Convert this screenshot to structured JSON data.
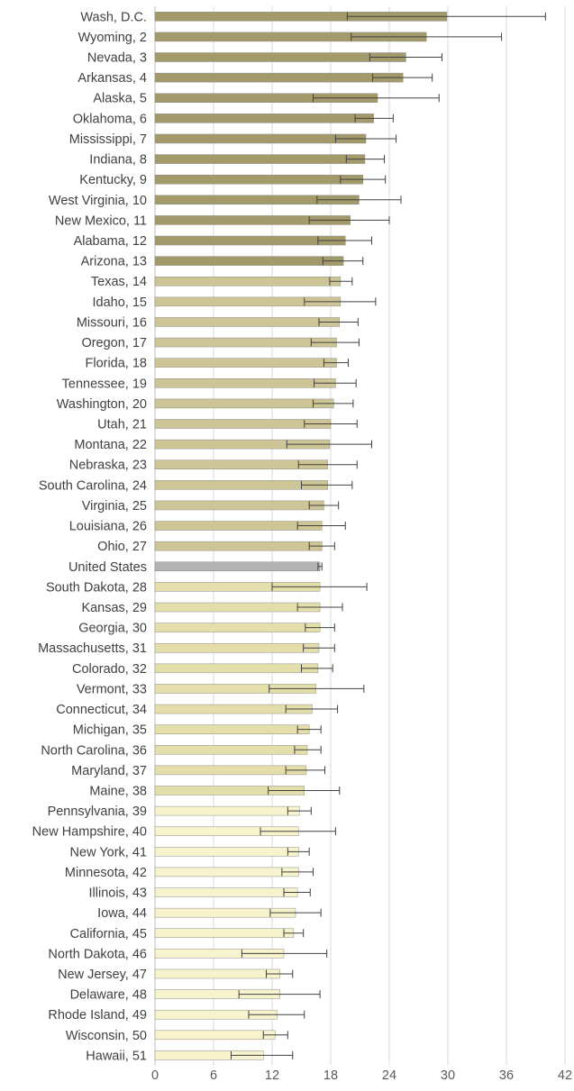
{
  "chart_data": {
    "type": "bar",
    "orientation": "horizontal",
    "title": "",
    "xlabel": "",
    "ylabel": "",
    "xlim": [
      0,
      42
    ],
    "xticks": [
      0,
      6,
      12,
      18,
      24,
      30,
      36,
      42
    ],
    "grid": true,
    "legend": "none",
    "colors": {
      "top": "#a29a6a",
      "upper": "#cdc595",
      "mid": "#e4dfaa",
      "low": "#f7f3cd",
      "us": "#b3b3b3"
    },
    "categories": [
      "Wash, D.C.",
      "Wyoming, 2",
      "Nevada, 3",
      "Arkansas, 4",
      "Alaska, 5",
      "Oklahoma, 6",
      "Mississippi, 7",
      "Indiana, 8",
      "Kentucky, 9",
      "West Virginia, 10",
      "New Mexico, 11",
      "Alabama, 12",
      "Arizona, 13",
      "Texas, 14",
      "Idaho, 15",
      "Missouri, 16",
      "Oregon, 17",
      "Florida, 18",
      "Tennessee, 19",
      "Washington, 20",
      "Utah, 21",
      "Montana, 22",
      "Nebraska, 23",
      "South Carolina, 24",
      "Virginia, 25",
      "Louisiana, 26",
      "Ohio, 27",
      "United States",
      "South Dakota, 28",
      "Kansas, 29",
      "Georgia, 30",
      "Massachusetts, 31",
      "Colorado, 32",
      "Vermont, 33",
      "Connecticut, 34",
      "Michigan, 35",
      "North Carolina, 36",
      "Maryland, 37",
      "Maine, 38",
      "Pennsylvania, 39",
      "New Hampshire, 40",
      "New York, 41",
      "Minnesota, 42",
      "Illinois, 43",
      "Iowa, 44",
      "California, 45",
      "North Dakota, 46",
      "New Jersey, 47",
      "Delaware, 48",
      "Rhode Island, 49",
      "Wisconsin, 50",
      "Hawaii, 51"
    ],
    "values": [
      29.9,
      27.8,
      25.7,
      25.4,
      22.8,
      22.4,
      21.6,
      21.5,
      21.3,
      20.9,
      20.0,
      19.5,
      19.3,
      19.0,
      19.0,
      18.9,
      18.6,
      18.6,
      18.5,
      18.3,
      18.0,
      17.9,
      17.7,
      17.7,
      17.3,
      17.1,
      17.1,
      16.9,
      16.9,
      16.9,
      16.9,
      16.8,
      16.7,
      16.5,
      16.1,
      15.8,
      15.6,
      15.5,
      15.3,
      14.8,
      14.7,
      14.7,
      14.7,
      14.6,
      14.4,
      14.2,
      13.2,
      12.8,
      12.8,
      12.5,
      12.3,
      11.1
    ],
    "error_low": [
      19.7,
      20.1,
      22.0,
      22.3,
      16.2,
      20.5,
      18.5,
      19.6,
      19.0,
      16.6,
      15.8,
      16.7,
      17.2,
      17.9,
      15.3,
      16.8,
      16.0,
      17.3,
      16.3,
      16.2,
      15.3,
      13.5,
      14.7,
      15.0,
      15.8,
      14.6,
      15.8,
      16.7,
      12.0,
      14.6,
      15.4,
      15.2,
      15.0,
      11.7,
      13.4,
      14.6,
      14.3,
      13.4,
      11.6,
      13.6,
      10.8,
      13.6,
      13.0,
      13.2,
      11.8,
      13.2,
      8.9,
      11.4,
      8.6,
      9.6,
      11.1,
      7.8
    ],
    "error_high": [
      40.0,
      35.5,
      29.4,
      28.4,
      29.1,
      24.4,
      24.7,
      23.5,
      23.6,
      25.2,
      24.0,
      22.2,
      21.3,
      20.2,
      22.6,
      20.8,
      20.9,
      19.8,
      20.6,
      20.3,
      20.7,
      22.2,
      20.7,
      20.2,
      18.8,
      19.5,
      18.4,
      17.1,
      21.7,
      19.2,
      18.4,
      18.4,
      18.2,
      21.4,
      18.7,
      17.0,
      17.0,
      17.4,
      18.9,
      16.0,
      18.5,
      15.8,
      16.2,
      15.9,
      17.0,
      15.2,
      17.6,
      14.1,
      16.9,
      15.3,
      13.6,
      14.1
    ],
    "color_groups": [
      "top",
      "top",
      "top",
      "top",
      "top",
      "top",
      "top",
      "top",
      "top",
      "top",
      "top",
      "top",
      "top",
      "upper",
      "upper",
      "upper",
      "upper",
      "upper",
      "upper",
      "upper",
      "upper",
      "upper",
      "upper",
      "upper",
      "upper",
      "upper",
      "upper",
      "us",
      "mid",
      "mid",
      "mid",
      "mid",
      "mid",
      "mid",
      "mid",
      "mid",
      "mid",
      "mid",
      "mid",
      "low",
      "low",
      "low",
      "low",
      "low",
      "low",
      "low",
      "low",
      "low",
      "low",
      "low",
      "low",
      "low"
    ]
  }
}
